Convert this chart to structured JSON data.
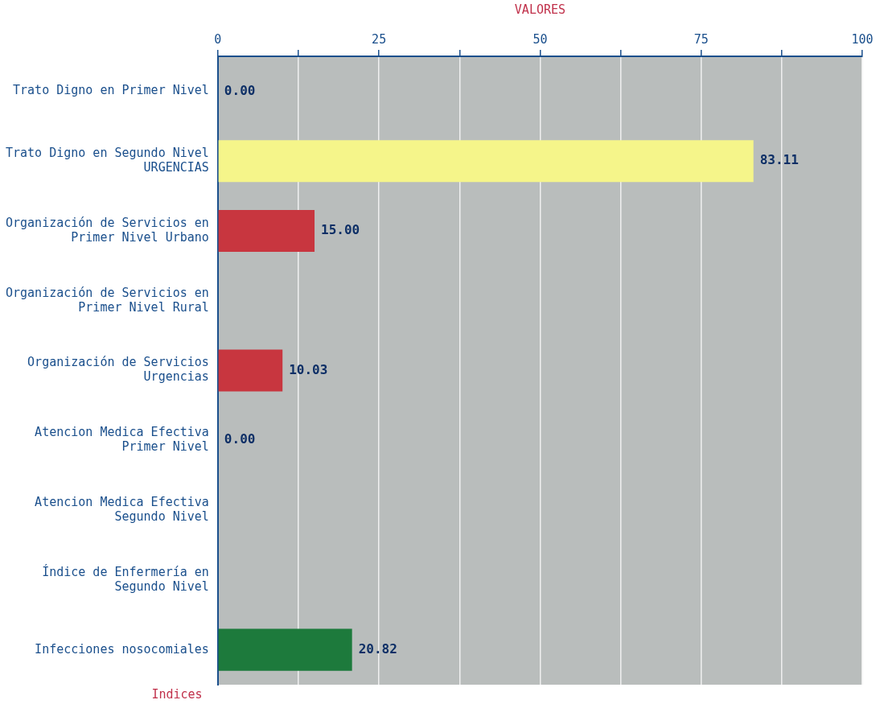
{
  "chart_data": {
    "type": "bar",
    "orientation": "horizontal",
    "xlabel": "VALORES",
    "ylabel": "Indices",
    "categories": [
      "Trato Digno en Primer Nivel",
      "Trato Digno en Segundo Nivel\nURGENCIAS",
      "Organización de Servicios en\nPrimer Nivel Urbano",
      "Organización de Servicios en\nPrimer Nivel Rural",
      "Organización de Servicios\nUrgencias",
      "Atencion Medica Efectiva\nPrimer Nivel",
      "Atencion Medica Efectiva\nSegundo Nivel",
      "Índice de Enfermería en\nSegundo Nivel",
      "Infecciones nosocomiales"
    ],
    "values": [
      0,
      83.11,
      15,
      null,
      10.03,
      0,
      null,
      null,
      20.82
    ],
    "colors": [
      "#f5f58a",
      "#f5f58a",
      "#c8363f",
      "#c8363f",
      "#c8363f",
      "#c8363f",
      "#c8363f",
      "#c8363f",
      "#1d7a3c"
    ],
    "value_labels": [
      "0.00",
      "83.11",
      "15.00",
      null,
      "10.03",
      "0.00",
      null,
      null,
      "20.82"
    ],
    "xlim": [
      0,
      100
    ],
    "xticks": [
      0,
      {
        "value": 12.5,
        "label": null
      },
      25,
      {
        "value": 37.5,
        "label": null
      },
      50,
      {
        "value": 62.5,
        "label": null
      },
      75,
      {
        "value": 87.5,
        "label": null
      },
      100
    ],
    "grid": "x",
    "legend": false
  }
}
